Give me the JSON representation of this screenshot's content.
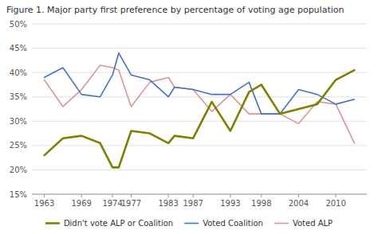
{
  "chart_data": {
    "type": "line",
    "title": "Figure 1. Major party first preference by percentage of voting age population",
    "x": [
      1963,
      1966,
      1969,
      1972,
      1974,
      1975,
      1977,
      1980,
      1983,
      1984,
      1987,
      1990,
      1993,
      1996,
      1998,
      2001,
      2004,
      2007,
      2010,
      2013
    ],
    "series": [
      {
        "name": "Didn't vote ALP or Coalition",
        "color": "#808000",
        "values": [
          23.0,
          26.5,
          27.0,
          25.5,
          20.5,
          20.5,
          28.0,
          27.5,
          25.5,
          27.0,
          26.5,
          34.0,
          28.0,
          36.0,
          37.5,
          31.5,
          32.5,
          33.5,
          38.5,
          40.5
        ]
      },
      {
        "name": "Voted Coalition",
        "color": "#4472C4",
        "values": [
          39.0,
          41.0,
          35.5,
          35.0,
          39.5,
          44.0,
          39.5,
          38.5,
          35.0,
          37.0,
          36.5,
          35.5,
          35.5,
          38.0,
          31.5,
          31.5,
          36.5,
          35.5,
          33.5,
          34.5
        ]
      },
      {
        "name": "Voted ALP",
        "color": "#DA9694",
        "values": [
          38.5,
          33.0,
          36.5,
          41.5,
          41.0,
          40.5,
          33.0,
          38.0,
          39.0,
          37.0,
          36.5,
          32.0,
          35.5,
          31.5,
          31.5,
          31.5,
          29.5,
          34.0,
          33.5,
          25.5
        ]
      }
    ],
    "xlim": [
      1961,
      2015
    ],
    "xticks": [
      1963,
      1969,
      1974,
      1977,
      1983,
      1987,
      1993,
      1998,
      2004,
      2010
    ],
    "ylim": [
      15,
      50
    ],
    "yticks": [
      {
        "value": 15,
        "label": "15%"
      },
      {
        "value": 20,
        "label": "20%"
      },
      {
        "value": 25,
        "label": "25%"
      },
      {
        "value": 30,
        "label": "30%"
      },
      {
        "value": 35,
        "label": "35%"
      },
      {
        "value": 40,
        "label": "40%"
      },
      {
        "value": 45,
        "label": "45%"
      },
      {
        "value": 50,
        "label": "50%"
      }
    ],
    "grid": true,
    "legend": "bottom"
  }
}
